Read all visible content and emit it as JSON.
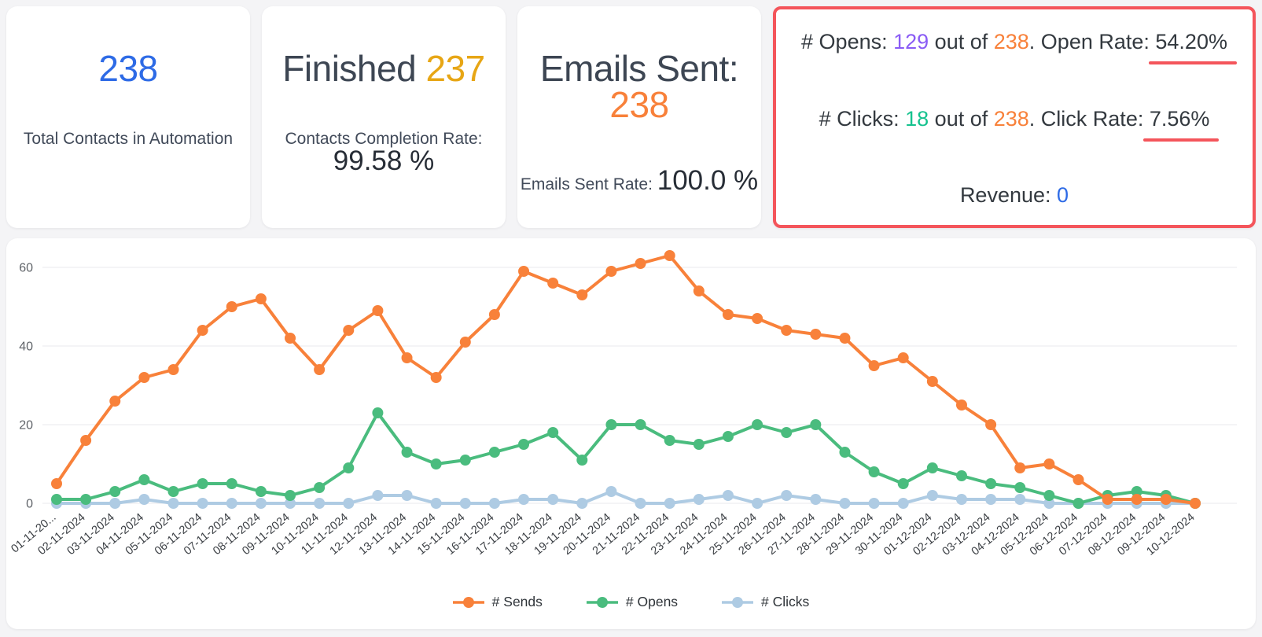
{
  "cards": {
    "total_contacts": {
      "value": "238",
      "label": "Total Contacts in Automation"
    },
    "finished": {
      "title": "Finished ",
      "value": "237",
      "rate_label": "Contacts Completion Rate: ",
      "rate_value": "99.58 %"
    },
    "emails_sent": {
      "title": "Emails Sent: ",
      "value": "238",
      "rate_label": "Emails Sent Rate: ",
      "rate_value": "100.0 %"
    },
    "engagement": {
      "opens": {
        "prefix": "# Opens: ",
        "count": "129",
        "middle": " out of ",
        "total": "238",
        "rate_label": ". Open Rate: ",
        "rate_value": "54.20%"
      },
      "clicks": {
        "prefix": "# Clicks: ",
        "count": "18",
        "middle": " out of ",
        "total": "238",
        "rate_label": ". Click Rate: ",
        "rate_value": "7.56%"
      },
      "revenue": {
        "label": "Revenue: ",
        "value": "0"
      }
    }
  },
  "colors": {
    "accent_blue": "#2e6be6",
    "accent_gold": "#e7a615",
    "accent_orange": "#f8813a",
    "accent_purple": "#8a5cf5",
    "accent_teal": "#15c28e",
    "accent_red": "#f4555b"
  },
  "chart_data": {
    "type": "line",
    "x": [
      "01-11-20...",
      "02-11-2024",
      "03-11-2024",
      "04-11-2024",
      "05-11-2024",
      "06-11-2024",
      "07-11-2024",
      "08-11-2024",
      "09-11-2024",
      "10-11-2024",
      "11-11-2024",
      "12-11-2024",
      "13-11-2024",
      "14-11-2024",
      "15-11-2024",
      "16-11-2024",
      "17-11-2024",
      "18-11-2024",
      "19-11-2024",
      "20-11-2024",
      "21-11-2024",
      "22-11-2024",
      "23-11-2024",
      "24-11-2024",
      "25-11-2024",
      "26-11-2024",
      "27-11-2024",
      "28-11-2024",
      "29-11-2024",
      "30-11-2024",
      "01-12-2024",
      "02-12-2024",
      "03-12-2024",
      "04-12-2024",
      "05-12-2024",
      "06-12-2024",
      "07-12-2024",
      "08-12-2024",
      "09-12-2024",
      "10-12-2024"
    ],
    "series": [
      {
        "name": "# Sends",
        "color": "#f8813a",
        "values": [
          5,
          16,
          26,
          32,
          34,
          44,
          50,
          52,
          42,
          34,
          44,
          49,
          37,
          32,
          41,
          48,
          59,
          56,
          53,
          59,
          61,
          63,
          54,
          48,
          47,
          44,
          43,
          42,
          35,
          37,
          31,
          25,
          20,
          9,
          10,
          6,
          1,
          1,
          1,
          0
        ]
      },
      {
        "name": "# Opens",
        "color": "#4abc7e",
        "values": [
          1,
          1,
          3,
          6,
          3,
          5,
          5,
          3,
          2,
          4,
          9,
          23,
          13,
          10,
          11,
          13,
          15,
          18,
          11,
          20,
          20,
          16,
          15,
          17,
          20,
          18,
          20,
          13,
          8,
          5,
          9,
          7,
          5,
          4,
          2,
          0,
          2,
          3,
          2,
          0
        ]
      },
      {
        "name": "# Clicks",
        "color": "#aecbe3",
        "values": [
          0,
          0,
          0,
          1,
          0,
          0,
          0,
          0,
          0,
          0,
          0,
          2,
          2,
          0,
          0,
          0,
          1,
          1,
          0,
          3,
          0,
          0,
          1,
          2,
          0,
          2,
          1,
          0,
          0,
          0,
          2,
          1,
          1,
          1,
          0,
          0,
          0,
          0,
          0,
          0
        ]
      }
    ],
    "ylim": [
      0,
      60
    ],
    "yticks": [
      0,
      20,
      40,
      60
    ],
    "grid": true,
    "legend_position": "bottom"
  }
}
